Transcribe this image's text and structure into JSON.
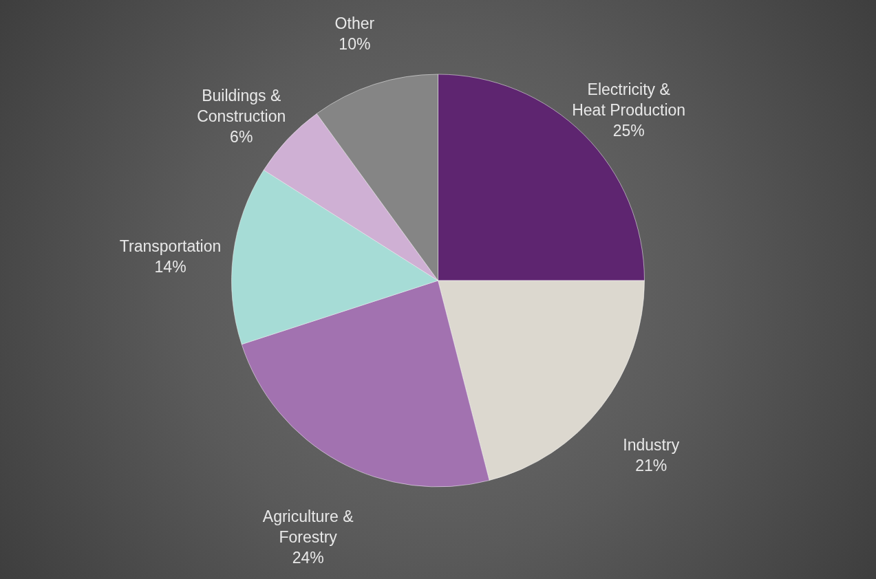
{
  "chart_data": {
    "type": "pie",
    "categories": [
      "Electricity & Heat Production",
      "Industry",
      "Agriculture & Forestry",
      "Transportation",
      "Buildings & Construction",
      "Other"
    ],
    "values": [
      25,
      21,
      24,
      14,
      6,
      10
    ],
    "value_labels": [
      "25%",
      "21%",
      "24%",
      "14%",
      "6%",
      "10%"
    ],
    "colors": [
      "#5e2570",
      "#dcd8cf",
      "#a272b0",
      "#a6dcd6",
      "#cfb0d4",
      "#858585"
    ]
  }
}
